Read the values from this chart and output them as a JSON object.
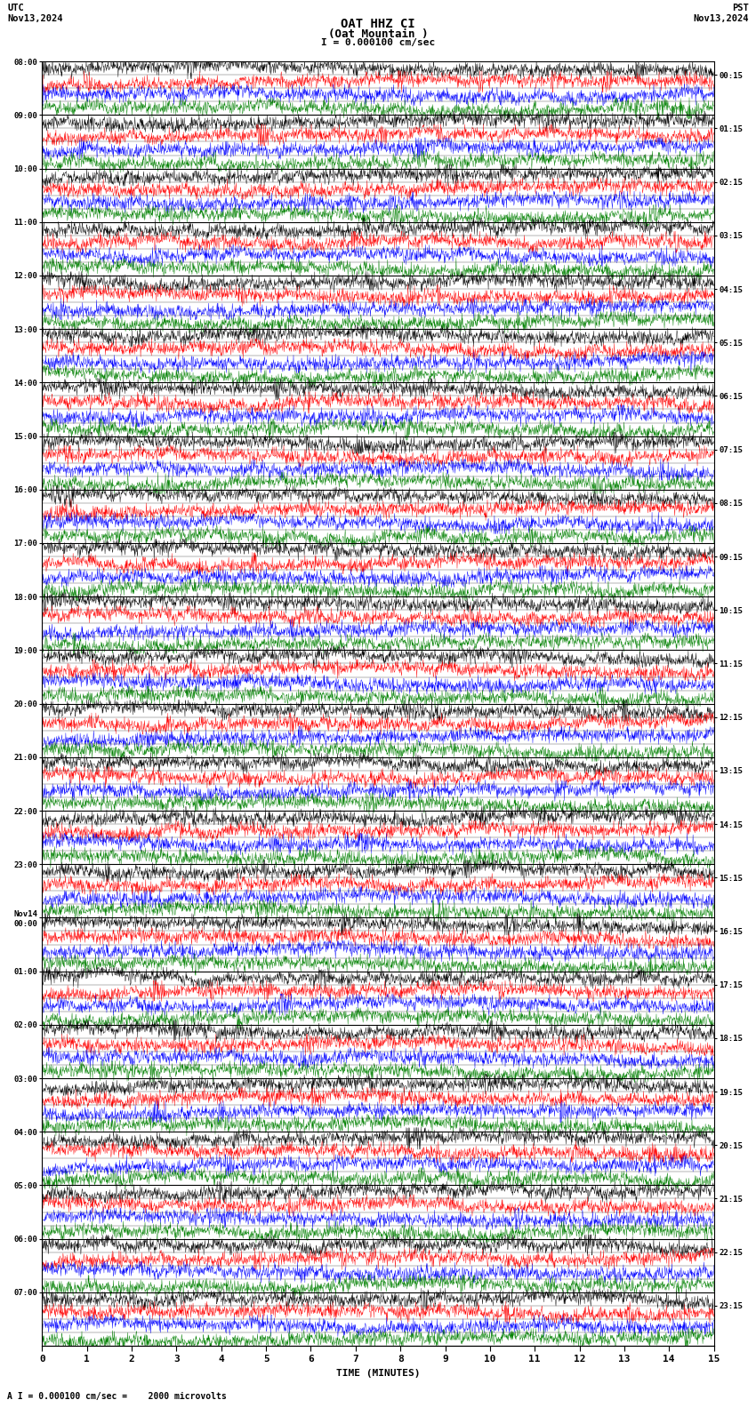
{
  "title_line1": "OAT HHZ CI",
  "title_line2": "(Oat Mountain )",
  "scale_label": "I = 0.000100 cm/sec",
  "utc_label": "UTC",
  "pst_label": "PST",
  "date_left": "Nov13,2024",
  "date_right": "Nov13,2024",
  "bottom_note": "A I = 0.000100 cm/sec =    2000 microvolts",
  "xlabel": "TIME (MINUTES)",
  "left_times": [
    "08:00",
    "09:00",
    "10:00",
    "11:00",
    "12:00",
    "13:00",
    "14:00",
    "15:00",
    "16:00",
    "17:00",
    "18:00",
    "19:00",
    "20:00",
    "21:00",
    "22:00",
    "23:00",
    "Nov14\n00:00",
    "01:00",
    "02:00",
    "03:00",
    "04:00",
    "05:00",
    "06:00",
    "07:00"
  ],
  "right_times": [
    "00:15",
    "01:15",
    "02:15",
    "03:15",
    "04:15",
    "05:15",
    "06:15",
    "07:15",
    "08:15",
    "09:15",
    "10:15",
    "11:15",
    "12:15",
    "13:15",
    "14:15",
    "15:15",
    "16:15",
    "17:15",
    "18:15",
    "19:15",
    "20:15",
    "21:15",
    "22:15",
    "23:15"
  ],
  "n_hours": 24,
  "subrows_per_hour": 4,
  "subrow_colors": [
    "black",
    "red",
    "blue",
    "green"
  ],
  "n_cols": 2000,
  "amplitude": 0.45,
  "bg_color": "white",
  "trace_lw": 0.3,
  "xmin": 0,
  "xmax": 15,
  "xticks": [
    0,
    1,
    2,
    3,
    4,
    5,
    6,
    7,
    8,
    9,
    10,
    11,
    12,
    13,
    14,
    15
  ]
}
